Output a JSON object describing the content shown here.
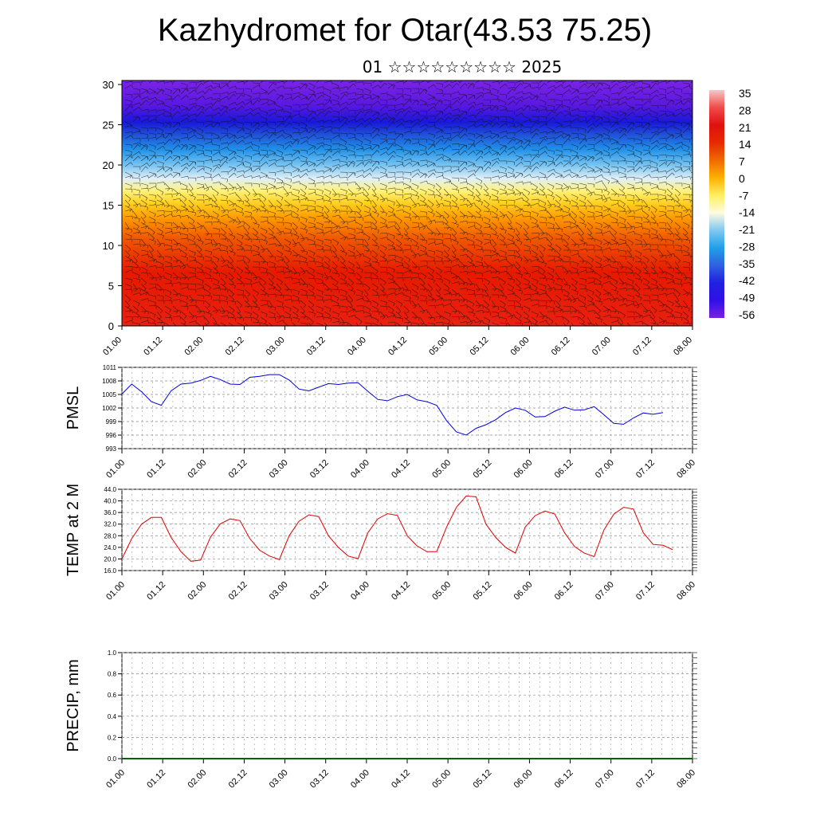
{
  "title": "Kazhydromet for Otar(43.53 75.25)",
  "subtitle": "01 ☆☆☆☆☆☆☆☆☆ 2025",
  "chart_data": [
    {
      "type": "heatmap",
      "name": "cross-section",
      "x_ticks": [
        "01.00",
        "01.12",
        "02.00",
        "02.12",
        "03.00",
        "03.12",
        "04.00",
        "04.12",
        "05.00",
        "05.12",
        "06.00",
        "06.12",
        "07.00",
        "07.12",
        "08.00"
      ],
      "y_ticks": [
        "0",
        "5",
        "10",
        "15",
        "20",
        "25",
        "30"
      ],
      "ylim": [
        0,
        30.5
      ],
      "colorbar_labels": [
        "35",
        "28",
        "21",
        "14",
        "7",
        "0",
        "-7",
        "-14",
        "-21",
        "-28",
        "-35",
        "-42",
        "-49",
        "-56"
      ],
      "colorbar_colors": [
        "#f5c8c8",
        "#f04a4a",
        "#e01010",
        "#e62a00",
        "#f06a00",
        "#ffb000",
        "#fff060",
        "#fffbe0",
        "#80c8f0",
        "#20a0e8",
        "#3060e0",
        "#2020e0",
        "#3010e8",
        "#7a20e0"
      ],
      "note_temps_at_heights": [
        [
          0,
          24
        ],
        [
          5,
          18
        ],
        [
          10,
          6
        ],
        [
          15,
          -5
        ],
        [
          20,
          -28
        ],
        [
          25,
          -52
        ],
        [
          30,
          -60
        ]
      ]
    },
    {
      "type": "line",
      "name": "PMSL",
      "ylabel": "PMSL",
      "ylim": [
        993,
        1011
      ],
      "y_ticks": [
        "1011",
        "1008",
        "1005",
        "1002",
        "999",
        "996",
        "993"
      ],
      "x_ticks": [
        "01.00",
        "01.12",
        "02.00",
        "02.12",
        "03.00",
        "03.12",
        "04.00",
        "04.12",
        "05.00",
        "05.12",
        "06.00",
        "06.12",
        "07.00",
        "07.12",
        "08.00"
      ],
      "color": "#0000dd",
      "values": [
        1005.1,
        1007.3,
        1005.6,
        1003.4,
        1002.6,
        1005.8,
        1007.3,
        1007.5,
        1008.1,
        1009.0,
        1008.3,
        1007.3,
        1007.2,
        1008.8,
        1009.0,
        1009.4,
        1009.4,
        1008.2,
        1006.2,
        1005.8,
        1006.6,
        1007.4,
        1007.2,
        1007.5,
        1007.6,
        1005.7,
        1003.9,
        1003.6,
        1004.5,
        1005.0,
        1003.8,
        1003.4,
        1002.6,
        999.2,
        996.7,
        996.0,
        997.5,
        998.3,
        999.4,
        1001.0,
        1002.0,
        1001.5,
        1000.0,
        1000.1,
        1001.3,
        1002.2,
        1001.5,
        1001.6,
        1002.3,
        1000.5,
        998.6,
        998.4,
        999.8,
        1000.9,
        1000.6,
        1001.0
      ]
    },
    {
      "type": "line",
      "name": "TEMP at 2 M",
      "ylabel": "TEMP at 2 M",
      "ylim": [
        16,
        44
      ],
      "y_ticks": [
        "44.0",
        "40.0",
        "36.0",
        "32.0",
        "28.0",
        "24.0",
        "20.0",
        "16.0"
      ],
      "x_ticks": [
        "01.00",
        "01.12",
        "02.00",
        "02.12",
        "03.00",
        "03.12",
        "04.00",
        "04.12",
        "05.00",
        "05.12",
        "06.00",
        "06.12",
        "07.00",
        "07.12",
        "08.00"
      ],
      "color": "#dd0000",
      "values": [
        20.0,
        27.0,
        32.0,
        34.3,
        34.3,
        27.4,
        22.5,
        19.2,
        19.6,
        27.5,
        32.1,
        33.8,
        33.2,
        27.0,
        23.0,
        21.0,
        19.8,
        28.0,
        33.0,
        35.2,
        34.6,
        28.0,
        24.0,
        21.0,
        20.1,
        29.0,
        33.8,
        35.6,
        35.0,
        28.0,
        24.5,
        22.5,
        22.5,
        31.0,
        37.8,
        41.7,
        41.4,
        32.0,
        27.4,
        24.0,
        22.0,
        31.0,
        34.9,
        36.5,
        35.5,
        29.0,
        24.3,
        22.0,
        20.8,
        30.0,
        35.4,
        37.8,
        37.2,
        29.0,
        25.0,
        24.7,
        23.2
      ]
    },
    {
      "type": "line",
      "name": "PRECIP, mm",
      "ylabel": "PRECIP, mm",
      "ylim": [
        0.0,
        1.0
      ],
      "y_ticks": [
        "1.0",
        "0.8",
        "0.6",
        "0.4",
        "0.2",
        "0.0"
      ],
      "x_ticks": [
        "01.00",
        "01.12",
        "02.00",
        "02.12",
        "03.00",
        "03.12",
        "04.00",
        "04.12",
        "05.00",
        "05.12",
        "06.00",
        "06.12",
        "07.00",
        "07.12",
        "08.00"
      ],
      "color": "#006600",
      "values": [
        0,
        0,
        0,
        0,
        0,
        0,
        0,
        0,
        0,
        0,
        0,
        0,
        0,
        0,
        0
      ]
    }
  ]
}
